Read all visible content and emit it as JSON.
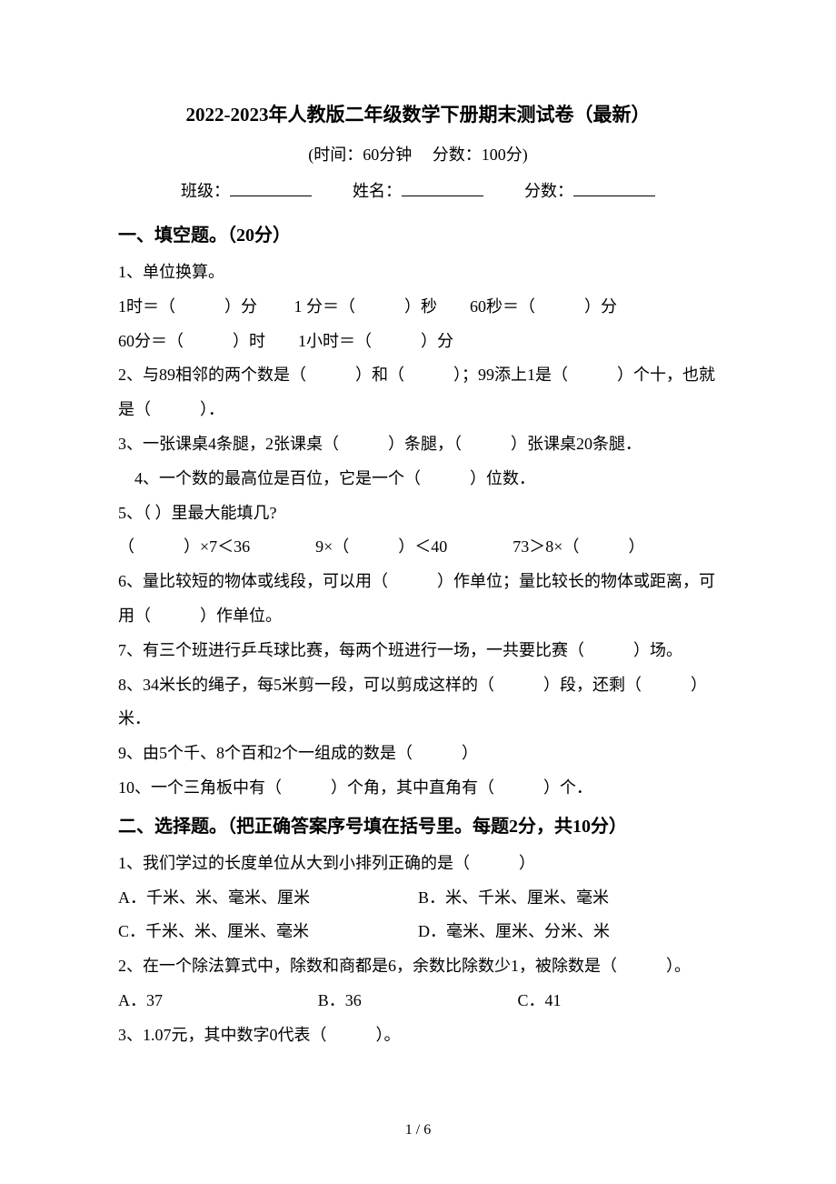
{
  "title": "2022-2023年人教版二年级数学下册期末测试卷（最新）",
  "subtitle": "(时间：60分钟　 分数：100分)",
  "info": {
    "class_label": "班级：",
    "name_label": "姓名：",
    "score_label": "分数："
  },
  "section1": {
    "header": "一、填空题。（20分）",
    "q1_label": "1、单位换算。",
    "q1_line1": "1时＝（　　　）分　　 1 分＝（　　　）秒　　60秒＝（　　　）分",
    "q1_line2": "60分＝（　　　）时　　1小时＝（　　　）分",
    "q2": "2、与89相邻的两个数是（　　　）和（　　　）；99添上1是（　　　）个十，也就是（　　　）．",
    "q3": "3、一张课桌4条腿，2张课桌（　　　）条腿，（　　　）张课桌20条腿．",
    "q4": "　4、一个数的最高位是百位，它是一个（　　　）位数．",
    "q5_label": "5、（ ）里最大能填几?",
    "q5_line": "（　　　）×7＜36　　　　9×（　　　）＜40　　　　73＞8×（　　　）",
    "q6": "6、量比较短的物体或线段，可以用（　　　）作单位；量比较长的物体或距离，可用（　　　）作单位。",
    "q7": "7、有三个班进行乒乓球比赛，每两个班进行一场，一共要比赛（　　　）场。",
    "q8": "8、34米长的绳子，每5米剪一段，可以剪成这样的（　　　）段，还剩（　　　）米．",
    "q9": "9、由5个千、8个百和2个一组成的数是（　　　）",
    "q10": "10、一个三角板中有（　　　）个角，其中直角有（　　　）个．"
  },
  "section2": {
    "header": "二、选择题。（把正确答案序号填在括号里。每题2分，共10分）",
    "q1": "1、我们学过的长度单位从大到小排列正确的是（　　　）",
    "q1_optA": "A．千米、米、毫米、厘米",
    "q1_optB": "B．米、千米、厘米、毫米",
    "q1_optC": "C．千米、米、厘米、毫米",
    "q1_optD": "D．毫米、厘米、分米、米",
    "q2": "2、在一个除法算式中，除数和商都是6，余数比除数少1，被除数是（　　　）。",
    "q2_optA": "A．37",
    "q2_optB": "B．36",
    "q2_optC": "C．41",
    "q3": "3、1.07元，其中数字0代表（　　　）。"
  },
  "footer": "1 / 6"
}
